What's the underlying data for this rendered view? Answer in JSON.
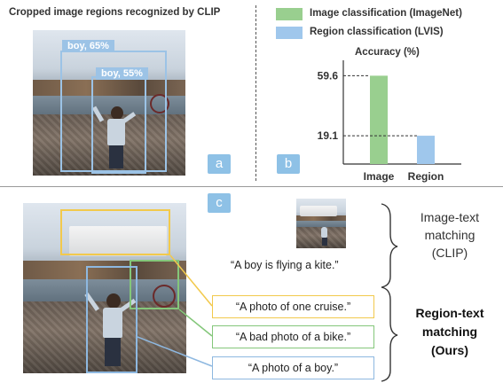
{
  "panel_a": {
    "title": "Cropped image regions recognized by CLIP",
    "tags": [
      "boy, 65%",
      "boy, 55%"
    ],
    "badge": "a"
  },
  "panel_b": {
    "badge": "b",
    "legend": [
      {
        "label": "Image classification (ImageNet)",
        "color": "#99cf8f"
      },
      {
        "label": "Region classification (LVIS)",
        "color": "#9fc7ec"
      }
    ]
  },
  "chart_data": {
    "type": "bar",
    "categories": [
      "Image",
      "Region"
    ],
    "values": [
      59.6,
      19.1
    ],
    "colors": [
      "#99cf8f",
      "#9fc7ec"
    ],
    "title": "",
    "xlabel": "",
    "ylabel": "Accuracy (%)",
    "ytick_labels": [
      "59.6",
      "19.1"
    ],
    "ylim": [
      0,
      70
    ],
    "grid": false
  },
  "panel_c": {
    "badge": "c",
    "image_caption": "“A boy is flying a kite.”",
    "region_captions": [
      {
        "text": "“A photo of one cruise.”",
        "color": "#f2c94c"
      },
      {
        "text": "“A bad photo of a bike.”",
        "color": "#84c77a"
      },
      {
        "text": "“A photo of a boy.”",
        "color": "#8eb8e0"
      }
    ],
    "image_text_label": [
      "Image-text",
      "matching",
      "(CLIP)"
    ],
    "region_text_label": [
      "Region-text",
      "matching",
      "(Ours)"
    ]
  }
}
